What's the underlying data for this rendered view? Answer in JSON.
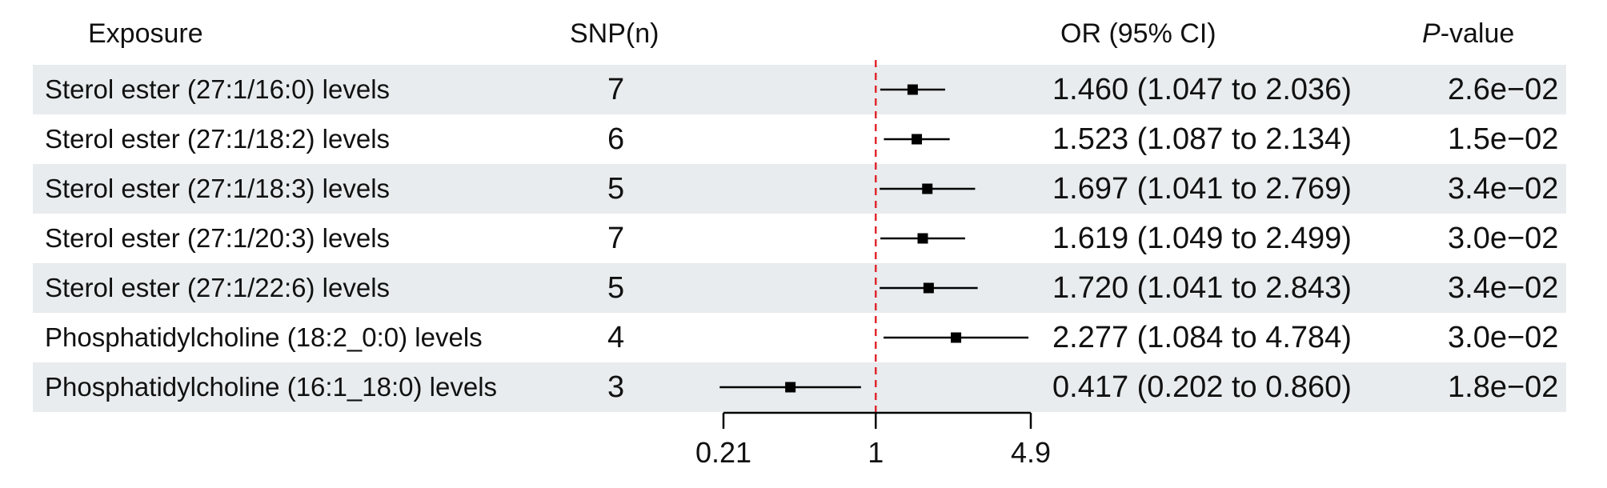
{
  "headers": {
    "exposure": "Exposure",
    "snp": "SNP(n)",
    "or_ci": "OR (95% CI)",
    "p_italic": "P",
    "p_rest": "-value"
  },
  "rows": [
    {
      "exposure": "Sterol ester (27:1/16:0) levels",
      "snp": "7",
      "or_ci": "1.460 (1.047 to 2.036)",
      "p": "2.6e−02"
    },
    {
      "exposure": "Sterol ester (27:1/18:2) levels",
      "snp": "6",
      "or_ci": "1.523 (1.087 to 2.134)",
      "p": "1.5e−02"
    },
    {
      "exposure": "Sterol ester (27:1/18:3) levels",
      "snp": "5",
      "or_ci": "1.697 (1.041 to 2.769)",
      "p": "3.4e−02"
    },
    {
      "exposure": "Sterol ester (27:1/20:3) levels",
      "snp": "7",
      "or_ci": "1.619 (1.049 to 2.499)",
      "p": "3.0e−02"
    },
    {
      "exposure": "Sterol ester (27:1/22:6) levels",
      "snp": "5",
      "or_ci": "1.720 (1.041 to 2.843)",
      "p": "3.4e−02"
    },
    {
      "exposure": "Phosphatidylcholine (18:2_0:0) levels",
      "snp": "4",
      "or_ci": "2.277 (1.084 to 4.784)",
      "p": "3.0e−02"
    },
    {
      "exposure": "Phosphatidylcholine (16:1_18:0) levels",
      "snp": "3",
      "or_ci": "0.417 (0.202 to 0.860)",
      "p": "1.8e−02"
    }
  ],
  "chart_data": {
    "type": "forest",
    "x_scale": "log",
    "reference_line": 1,
    "xlim": [
      0.21,
      4.9
    ],
    "xticks": [
      0.21,
      1,
      4.9
    ],
    "tick_labels": [
      "0.21",
      "1",
      "4.9"
    ],
    "points": [
      {
        "or": 1.46,
        "lo": 1.047,
        "hi": 2.036
      },
      {
        "or": 1.523,
        "lo": 1.087,
        "hi": 2.134
      },
      {
        "or": 1.697,
        "lo": 1.041,
        "hi": 2.769
      },
      {
        "or": 1.619,
        "lo": 1.049,
        "hi": 2.499
      },
      {
        "or": 1.72,
        "lo": 1.041,
        "hi": 2.843
      },
      {
        "or": 2.277,
        "lo": 1.084,
        "hi": 4.784
      },
      {
        "or": 0.417,
        "lo": 0.202,
        "hi": 0.86
      }
    ],
    "colors": {
      "reference_line": "#e0282e",
      "marks": "#000000",
      "row_shade": "#e8ecee"
    }
  }
}
